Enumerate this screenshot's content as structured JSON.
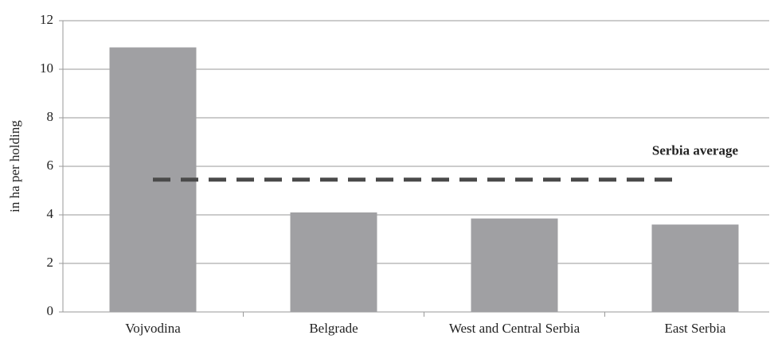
{
  "chart_data": {
    "type": "bar",
    "y_label": "in ha per holding",
    "categories": [
      "Vojvodina",
      "Belgrade",
      "West and Central Serbia",
      "East Serbia"
    ],
    "values": [
      10.9,
      4.1,
      3.85,
      3.6
    ],
    "color": "#a0a0a3",
    "ylim": [
      0,
      12
    ],
    "yticks": [
      0,
      2,
      4,
      6,
      8,
      10,
      12
    ],
    "grid": true,
    "reference_line": {
      "value": 5.45,
      "label": "Serbia average",
      "color": "#4a4a4a"
    }
  }
}
